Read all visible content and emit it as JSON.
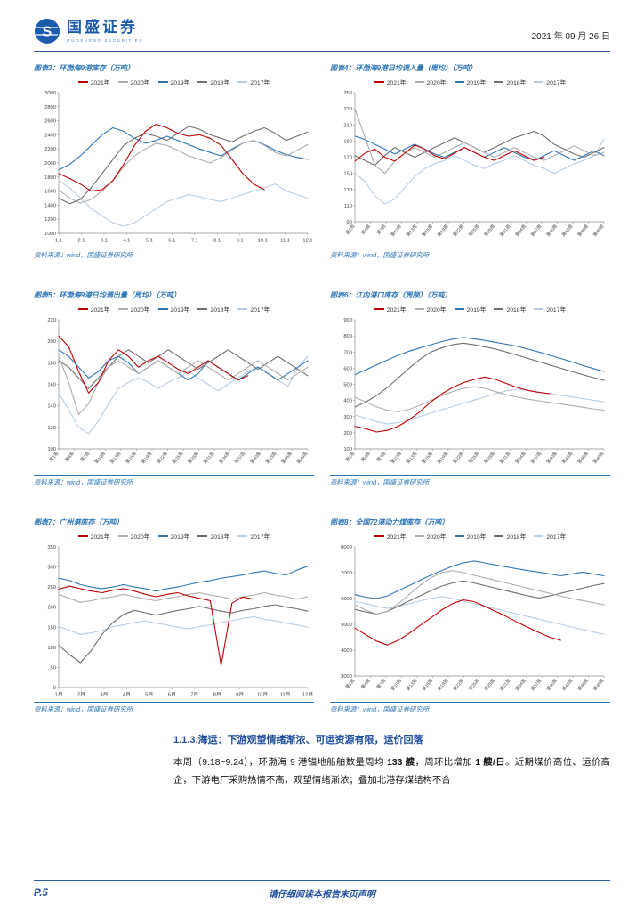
{
  "header": {
    "brand_cn": "国盛证券",
    "brand_en": "GUOSHENG SECURITIES",
    "date": "2021 年 09 月 26 日"
  },
  "chart_data": [
    {
      "type": "line",
      "title": "图表3：环渤海9港库存（万吨）",
      "source": "资料来源：wind，国盛证券研究所",
      "ylim": [
        1000,
        3000
      ],
      "ystep": 200,
      "x_rotate": false,
      "xlabels": [
        "1.1",
        "2.1",
        "3.1",
        "4.1",
        "5.1",
        "6.1",
        "7.1",
        "8.1",
        "9.1",
        "10.1",
        "11.1",
        "12.1"
      ],
      "series": [
        {
          "name": "2021年",
          "color": "#c00000",
          "values": [
            1850,
            1780,
            1700,
            1600,
            1620,
            1750,
            1980,
            2250,
            2450,
            2550,
            2500,
            2420,
            2380,
            2400,
            2350,
            2250,
            2050,
            1850,
            1700,
            1620
          ]
        },
        {
          "name": "2020年",
          "color": "#adadad",
          "values": [
            1620,
            1500,
            1430,
            1480,
            1600,
            1750,
            1950,
            2100,
            2200,
            2280,
            2250,
            2180,
            2100,
            2050,
            2000,
            2080,
            2180,
            2280,
            2320,
            2250,
            2150,
            2100,
            2180,
            2260
          ]
        },
        {
          "name": "2019年",
          "color": "#2e75b6",
          "values": [
            1900,
            1980,
            2100,
            2250,
            2400,
            2500,
            2450,
            2350,
            2280,
            2320,
            2380,
            2320,
            2260,
            2200,
            2150,
            2100,
            2200,
            2280,
            2320,
            2260,
            2180,
            2120,
            2080,
            2050
          ]
        },
        {
          "name": "2018年",
          "color": "#6e6e6e",
          "values": [
            1500,
            1420,
            1480,
            1650,
            1850,
            2050,
            2250,
            2350,
            2420,
            2380,
            2320,
            2420,
            2520,
            2480,
            2400,
            2350,
            2300,
            2380,
            2450,
            2500,
            2420,
            2320,
            2380,
            2440
          ]
        },
        {
          "name": "2017年",
          "color": "#b7cde2",
          "values": [
            1750,
            1650,
            1500,
            1350,
            1250,
            1150,
            1100,
            1150,
            1250,
            1350,
            1450,
            1500,
            1550,
            1520,
            1480,
            1450,
            1500,
            1550,
            1600,
            1650,
            1700,
            1600,
            1550,
            1500
          ]
        }
      ]
    },
    {
      "type": "line",
      "title": "图表4：环渤海9港日均调入量（周均）（万吨）",
      "source": "资料来源：wind，国盛证券研究所",
      "ylim": [
        90,
        250
      ],
      "ystep": 20,
      "x_rotate": true,
      "xlabels": [
        "第1周",
        "第4周",
        "第7周",
        "第10周",
        "第13周",
        "第16周",
        "第19周",
        "第22周",
        "第25周",
        "第28周",
        "第31周",
        "第34周",
        "第37周",
        "第40周",
        "第43周",
        "第46周",
        "第49周"
      ],
      "series": [
        {
          "name": "2021年",
          "color": "#c00000",
          "values": [
            165,
            175,
            180,
            170,
            165,
            175,
            185,
            180,
            172,
            168,
            175,
            182,
            176,
            170,
            166,
            172,
            178,
            172,
            166,
            170
          ]
        },
        {
          "name": "2020年",
          "color": "#adadad",
          "values": [
            230,
            195,
            160,
            150,
            165,
            175,
            182,
            176,
            170,
            176,
            182,
            188,
            182,
            176,
            170,
            176,
            182,
            176,
            170,
            166,
            172,
            178,
            184,
            178,
            172,
            176
          ]
        },
        {
          "name": "2019年",
          "color": "#2e75b6",
          "values": [
            196,
            192,
            186,
            180,
            174,
            180,
            186,
            180,
            174,
            170,
            176,
            182,
            176,
            170,
            176,
            182,
            176,
            170,
            166,
            172,
            178,
            172,
            166,
            172,
            178,
            172
          ]
        },
        {
          "name": "2018年",
          "color": "#6e6e6e",
          "values": [
            172,
            166,
            160,
            172,
            182,
            176,
            170,
            176,
            182,
            188,
            194,
            188,
            182,
            176,
            182,
            188,
            194,
            198,
            202,
            196,
            186,
            180,
            174,
            170,
            176,
            182
          ]
        },
        {
          "name": "2017年",
          "color": "#b7cde2",
          "values": [
            150,
            140,
            122,
            112,
            118,
            132,
            146,
            156,
            162,
            166,
            172,
            166,
            160,
            156,
            162,
            166,
            172,
            166,
            160,
            156,
            150,
            156,
            162,
            166,
            172,
            192
          ]
        }
      ]
    },
    {
      "type": "line",
      "title": "图表5：环渤海9港日均调出量（周均）（万吨）",
      "source": "资料来源：wind，国盛证券研究所",
      "ylim": [
        100,
        220
      ],
      "ystep": 20,
      "x_rotate": true,
      "xlabels": [
        "第1周",
        "第4周",
        "第7周",
        "第10周",
        "第13周",
        "第16周",
        "第19周",
        "第22周",
        "第25周",
        "第28周",
        "第31周",
        "第34周",
        "第37周",
        "第40周",
        "第43周",
        "第46周",
        "第49周"
      ],
      "series": [
        {
          "name": "2021年",
          "color": "#c00000",
          "values": [
            205,
            195,
            172,
            152,
            162,
            182,
            192,
            186,
            176,
            182,
            186,
            180,
            174,
            170,
            176,
            182,
            176,
            170,
            164,
            168
          ]
        },
        {
          "name": "2020年",
          "color": "#adadad",
          "values": [
            186,
            162,
            132,
            142,
            162,
            176,
            182,
            176,
            170,
            176,
            182,
            176,
            170,
            176,
            182,
            176,
            170,
            164,
            170,
            176,
            182,
            176,
            170,
            164,
            170,
            176
          ]
        },
        {
          "name": "2019年",
          "color": "#2e75b6",
          "values": [
            192,
            186,
            176,
            166,
            172,
            182,
            186,
            180,
            170,
            176,
            182,
            176,
            170,
            164,
            170,
            182,
            176,
            170,
            164,
            170,
            176,
            170,
            164,
            170,
            176,
            182
          ]
        },
        {
          "name": "2018年",
          "color": "#6e6e6e",
          "values": [
            182,
            176,
            166,
            156,
            166,
            176,
            186,
            192,
            186,
            180,
            186,
            192,
            186,
            180,
            174,
            180,
            186,
            192,
            186,
            180,
            174,
            180,
            186,
            180,
            174,
            168
          ]
        },
        {
          "name": "2017年",
          "color": "#b7cde2",
          "values": [
            152,
            136,
            120,
            114,
            126,
            142,
            156,
            162,
            166,
            162,
            156,
            162,
            166,
            172,
            166,
            160,
            154,
            160,
            166,
            172,
            176,
            170,
            164,
            158,
            176,
            186
          ]
        }
      ]
    },
    {
      "type": "line",
      "title": "图表6：江内港口库存（周频）（万吨）",
      "source": "资料来源：wind，国盛证券研究所",
      "ylim": [
        100,
        900
      ],
      "ystep": 100,
      "x_rotate": true,
      "xlabels": [
        "第1周",
        "第4周",
        "第7周",
        "第10周",
        "第13周",
        "第16周",
        "第19周",
        "第22周",
        "第25周",
        "第28周",
        "第31周",
        "第34周",
        "第37周",
        "第40周",
        "第43周",
        "第46周",
        "第49周"
      ],
      "series": [
        {
          "name": "2021年",
          "color": "#c00000",
          "values": [
            240,
            225,
            205,
            215,
            240,
            280,
            330,
            390,
            440,
            480,
            510,
            530,
            545,
            530,
            505,
            480,
            462,
            450,
            442
          ]
        },
        {
          "name": "2020年",
          "color": "#adadad",
          "values": [
            420,
            390,
            360,
            340,
            330,
            345,
            370,
            400,
            430,
            455,
            475,
            485,
            475,
            455,
            435,
            420,
            408,
            398,
            388,
            378,
            368,
            358,
            348,
            340
          ]
        },
        {
          "name": "2019年",
          "color": "#2e75b6",
          "values": [
            560,
            590,
            620,
            650,
            680,
            705,
            725,
            745,
            765,
            780,
            790,
            782,
            772,
            760,
            748,
            735,
            718,
            700,
            680,
            660,
            640,
            618,
            598,
            580
          ]
        },
        {
          "name": "2018年",
          "color": "#6e6e6e",
          "values": [
            360,
            390,
            430,
            480,
            540,
            600,
            655,
            700,
            725,
            745,
            755,
            745,
            732,
            718,
            700,
            680,
            660,
            640,
            620,
            600,
            580,
            560,
            542,
            525
          ]
        },
        {
          "name": "2017年",
          "color": "#b7cde2",
          "values": [
            310,
            290,
            268,
            255,
            262,
            280,
            300,
            322,
            342,
            362,
            382,
            402,
            422,
            442,
            460,
            470,
            462,
            452,
            442,
            432,
            422,
            412,
            402,
            392
          ]
        }
      ]
    },
    {
      "type": "line",
      "title": "图表7：广州港库存（万吨）",
      "source": "资料来源：wind，国盛证券研究所",
      "ylim": [
        0,
        350
      ],
      "ystep": 50,
      "x_rotate": false,
      "xlabels": [
        "1月",
        "2月",
        "3月",
        "4月",
        "5月",
        "6月",
        "7月",
        "8月",
        "9月",
        "10月",
        "11月",
        "12月"
      ],
      "series": [
        {
          "name": "2021年",
          "color": "#c00000",
          "values": [
            245,
            252,
            246,
            240,
            236,
            242,
            246,
            240,
            232,
            226,
            232,
            236,
            228,
            222,
            216,
            55,
            210,
            225,
            220
          ]
        },
        {
          "name": "2020年",
          "color": "#adadad",
          "values": [
            232,
            222,
            212,
            216,
            222,
            226,
            232,
            226,
            220,
            216,
            222,
            226,
            232,
            236,
            230,
            226,
            220,
            226,
            230,
            236,
            230,
            226,
            220,
            226
          ]
        },
        {
          "name": "2019年",
          "color": "#2e75b6",
          "values": [
            272,
            266,
            256,
            250,
            246,
            250,
            256,
            250,
            246,
            240,
            246,
            250,
            256,
            262,
            266,
            272,
            276,
            280,
            286,
            290,
            284,
            280,
            292,
            302
          ]
        },
        {
          "name": "2018年",
          "color": "#6e6e6e",
          "values": [
            105,
            82,
            62,
            92,
            132,
            162,
            182,
            192,
            186,
            180,
            186,
            192,
            196,
            202,
            196,
            190,
            186,
            192,
            196,
            202,
            206,
            200,
            196,
            190
          ]
        },
        {
          "name": "2017年",
          "color": "#b7cde2",
          "values": [
            152,
            142,
            132,
            136,
            142,
            152,
            156,
            162,
            166,
            160,
            156,
            150,
            146,
            152,
            156,
            162,
            166,
            172,
            176,
            170,
            166,
            160,
            156,
            150
          ]
        }
      ]
    },
    {
      "type": "line",
      "title": "图表8：全国72港动力煤库存（万吨）",
      "source": "资料来源：wind，国盛证券研究所",
      "ylim": [
        3000,
        8000
      ],
      "ystep": 1000,
      "x_rotate": true,
      "xlabels": [
        "第1周",
        "第4周",
        "第7周",
        "第10周",
        "第13周",
        "第16周",
        "第19周",
        "第22周",
        "第25周",
        "第28周",
        "第31周",
        "第34周",
        "第37周",
        "第40周",
        "第43周",
        "第46周",
        "第49周"
      ],
      "series": [
        {
          "name": "2021年",
          "color": "#c00000",
          "values": [
            4850,
            4600,
            4350,
            4200,
            4380,
            4650,
            4950,
            5250,
            5550,
            5800,
            5950,
            5880,
            5700,
            5500,
            5300,
            5080,
            4880,
            4680,
            4500,
            4380
          ]
        },
        {
          "name": "2020年",
          "color": "#adadad",
          "values": [
            5750,
            5550,
            5400,
            5500,
            5800,
            6150,
            6500,
            6800,
            7000,
            7080,
            7000,
            6900,
            6800,
            6700,
            6600,
            6500,
            6400,
            6300,
            6200,
            6100,
            6000,
            5920,
            5840,
            5760
          ]
        },
        {
          "name": "2019年",
          "color": "#2e75b6",
          "values": [
            6150,
            6050,
            6000,
            6100,
            6300,
            6500,
            6700,
            6900,
            7080,
            7250,
            7380,
            7450,
            7380,
            7300,
            7220,
            7150,
            7080,
            7020,
            6950,
            6880,
            6950,
            7020,
            6950,
            6880
          ]
        },
        {
          "name": "2018年",
          "color": "#6e6e6e",
          "values": [
            5580,
            5480,
            5400,
            5500,
            5700,
            5900,
            6100,
            6300,
            6480,
            6600,
            6680,
            6600,
            6500,
            6400,
            6300,
            6200,
            6100,
            6020,
            6100,
            6200,
            6300,
            6400,
            6500,
            6580
          ]
        },
        {
          "name": "2017年",
          "color": "#b7cde2",
          "values": [
            5900,
            5800,
            5700,
            5620,
            5700,
            5800,
            5900,
            6000,
            6080,
            6000,
            5900,
            5800,
            5700,
            5600,
            5500,
            5400,
            5300,
            5200,
            5100,
            5000,
            4900,
            4800,
            4700,
            4620
          ]
        }
      ]
    }
  ],
  "section": {
    "heading": "1.1.3.海运：下游观望情绪渐浓、可运资源有限，运价回落",
    "body_segments": [
      {
        "text": "本周（9.18~9.24），环渤海 9 港锚地船舶数量周均 ",
        "bold": false
      },
      {
        "text": "133 艘",
        "bold": true
      },
      {
        "text": "，周环比增加 ",
        "bold": false
      },
      {
        "text": "1 艘/日",
        "bold": true
      },
      {
        "text": "。近期煤价高位、运价高企，下游电厂采购热情不高，观望情绪渐浓；叠加北港存煤结构不合",
        "bold": false
      }
    ]
  },
  "footer": {
    "page": "P.5",
    "disclaimer": "请仔细阅读本报告末页声明"
  }
}
